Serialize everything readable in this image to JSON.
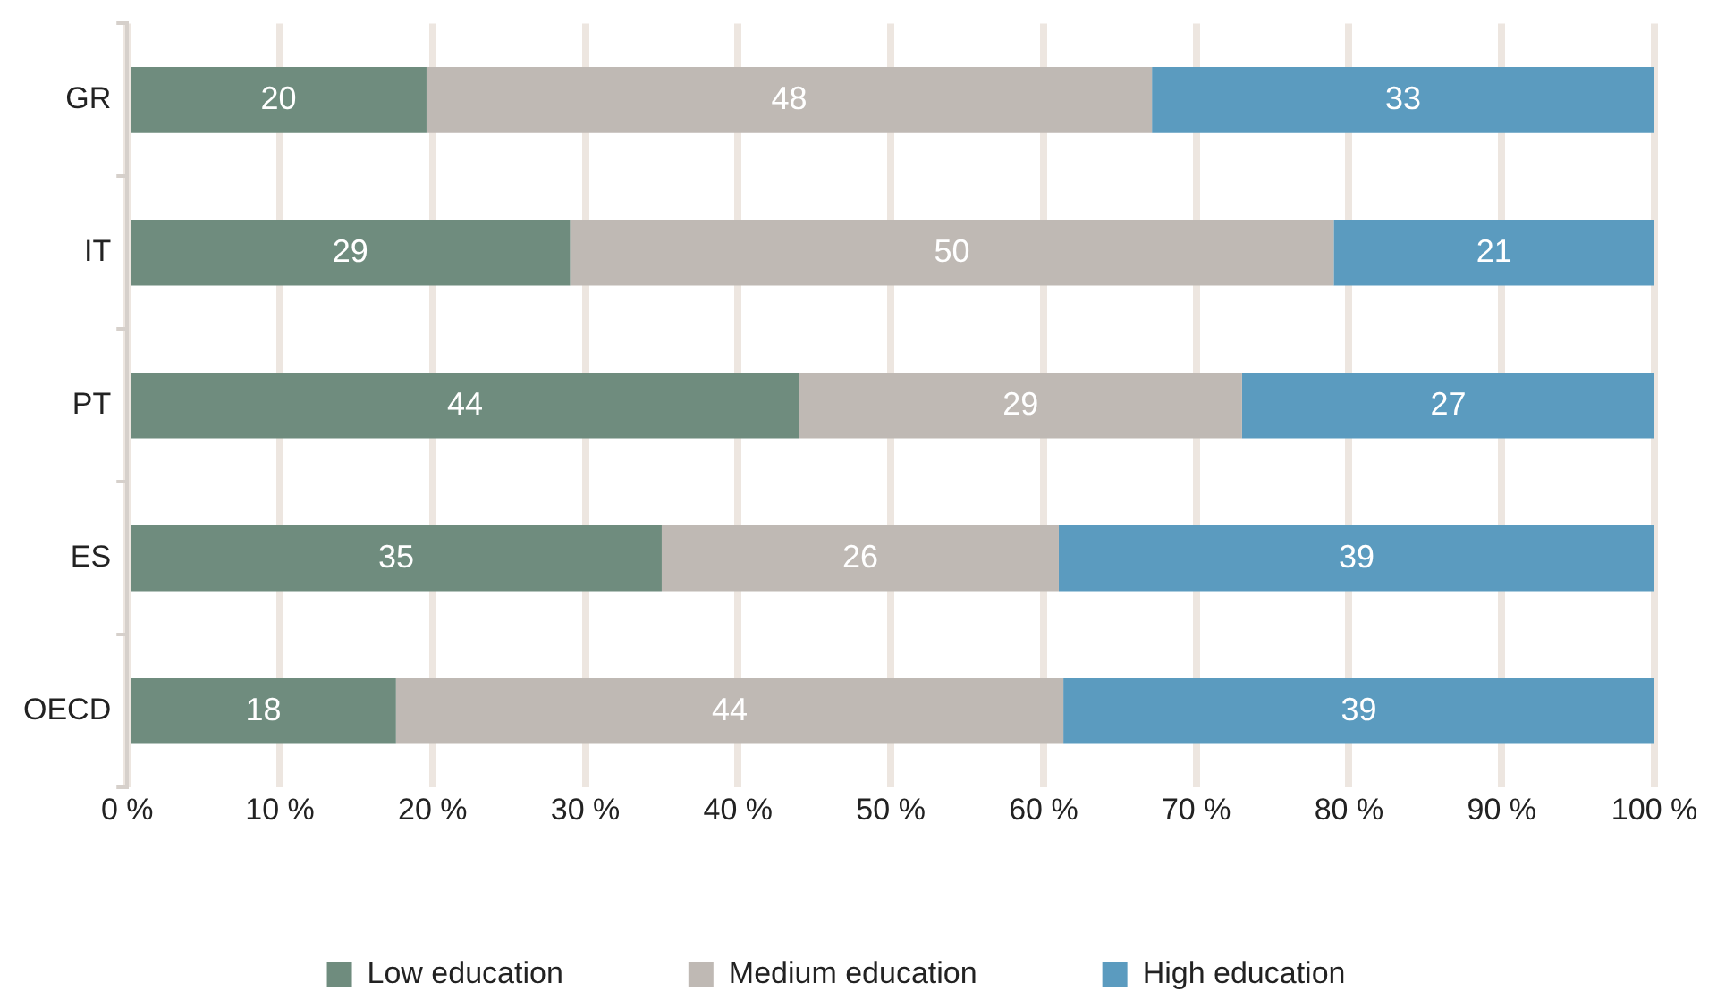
{
  "chart_data": {
    "type": "bar",
    "orientation": "horizontal",
    "stacked": true,
    "categories": [
      "GR",
      "IT",
      "PT",
      "ES",
      "OECD"
    ],
    "series": [
      {
        "name": "Low education",
        "color": "#6f8c7e",
        "values": [
          19.6,
          29,
          44,
          35,
          17.6
        ],
        "value_labels": [
          "20",
          "29",
          "44",
          "35",
          "18"
        ]
      },
      {
        "name": "Medium education",
        "color": "#bfb9b4",
        "values": [
          47.5,
          50,
          29,
          26,
          43.7
        ],
        "value_labels": [
          "48",
          "50",
          "29",
          "26",
          "44"
        ]
      },
      {
        "name": "High education",
        "color": "#5b9bbf",
        "values": [
          32.9,
          21,
          27,
          39,
          38.7
        ],
        "value_labels": [
          "33",
          "21",
          "27",
          "39",
          "39"
        ]
      }
    ],
    "xlim": [
      0,
      100
    ],
    "xticks": [
      {
        "value": 0,
        "label": "0 %"
      },
      {
        "value": 10,
        "label": "10 %"
      },
      {
        "value": 20,
        "label": "20 %"
      },
      {
        "value": 30,
        "label": "30 %"
      },
      {
        "value": 40,
        "label": "40 %"
      },
      {
        "value": 50,
        "label": "50 %"
      },
      {
        "value": 60,
        "label": "60 %"
      },
      {
        "value": 70,
        "label": "70 %"
      },
      {
        "value": 80,
        "label": "80 %"
      },
      {
        "value": 90,
        "label": "90 %"
      },
      {
        "value": 100,
        "label": "100 %"
      }
    ],
    "grid": "x",
    "legend": "bottom"
  }
}
